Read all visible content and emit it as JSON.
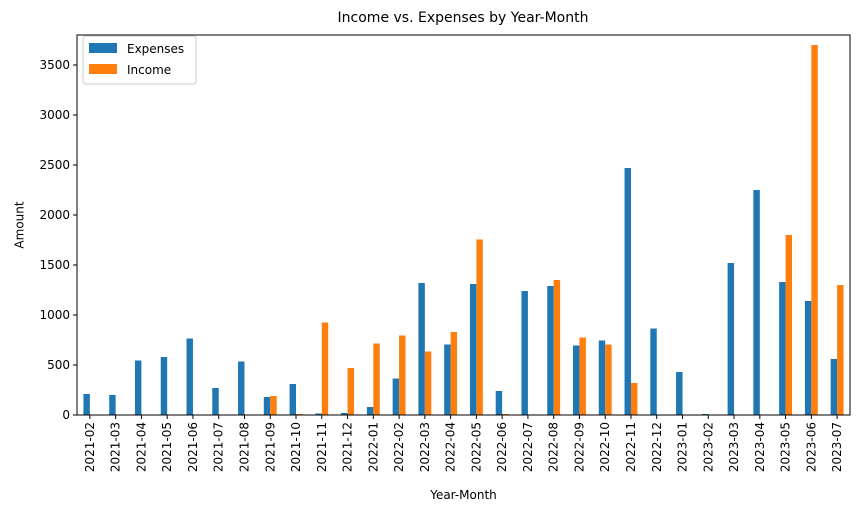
{
  "chart_data": {
    "type": "bar",
    "title": "Income vs. Expenses by Year-Month",
    "xlabel": "Year-Month",
    "ylabel": "Amount",
    "ylim": [
      0,
      3800
    ],
    "yticks": [
      0,
      500,
      1000,
      1500,
      2000,
      2500,
      3000,
      3500
    ],
    "legend_position": "top-left",
    "grid": false,
    "categories": [
      "2021-02",
      "2021-03",
      "2021-04",
      "2021-05",
      "2021-06",
      "2021-07",
      "2021-08",
      "2021-09",
      "2021-10",
      "2021-11",
      "2021-12",
      "2022-01",
      "2022-02",
      "2022-03",
      "2022-04",
      "2022-05",
      "2022-06",
      "2022-07",
      "2022-08",
      "2022-09",
      "2022-10",
      "2022-11",
      "2022-12",
      "2023-01",
      "2023-02",
      "2023-03",
      "2023-04",
      "2023-05",
      "2023-06",
      "2023-07"
    ],
    "series": [
      {
        "name": "Expenses",
        "color": "#1f77b4",
        "values": [
          210,
          200,
          545,
          580,
          765,
          270,
          535,
          180,
          310,
          15,
          20,
          80,
          365,
          1320,
          705,
          1310,
          240,
          1240,
          1290,
          695,
          745,
          2470,
          865,
          430,
          10,
          1520,
          2250,
          1330,
          1140,
          560
        ]
      },
      {
        "name": "Income",
        "color": "#ff7f0e",
        "values": [
          0,
          0,
          0,
          0,
          0,
          0,
          0,
          190,
          10,
          925,
          470,
          715,
          795,
          635,
          830,
          1755,
          10,
          0,
          1350,
          775,
          705,
          320,
          0,
          0,
          0,
          0,
          0,
          1800,
          3700,
          1300
        ]
      }
    ]
  }
}
